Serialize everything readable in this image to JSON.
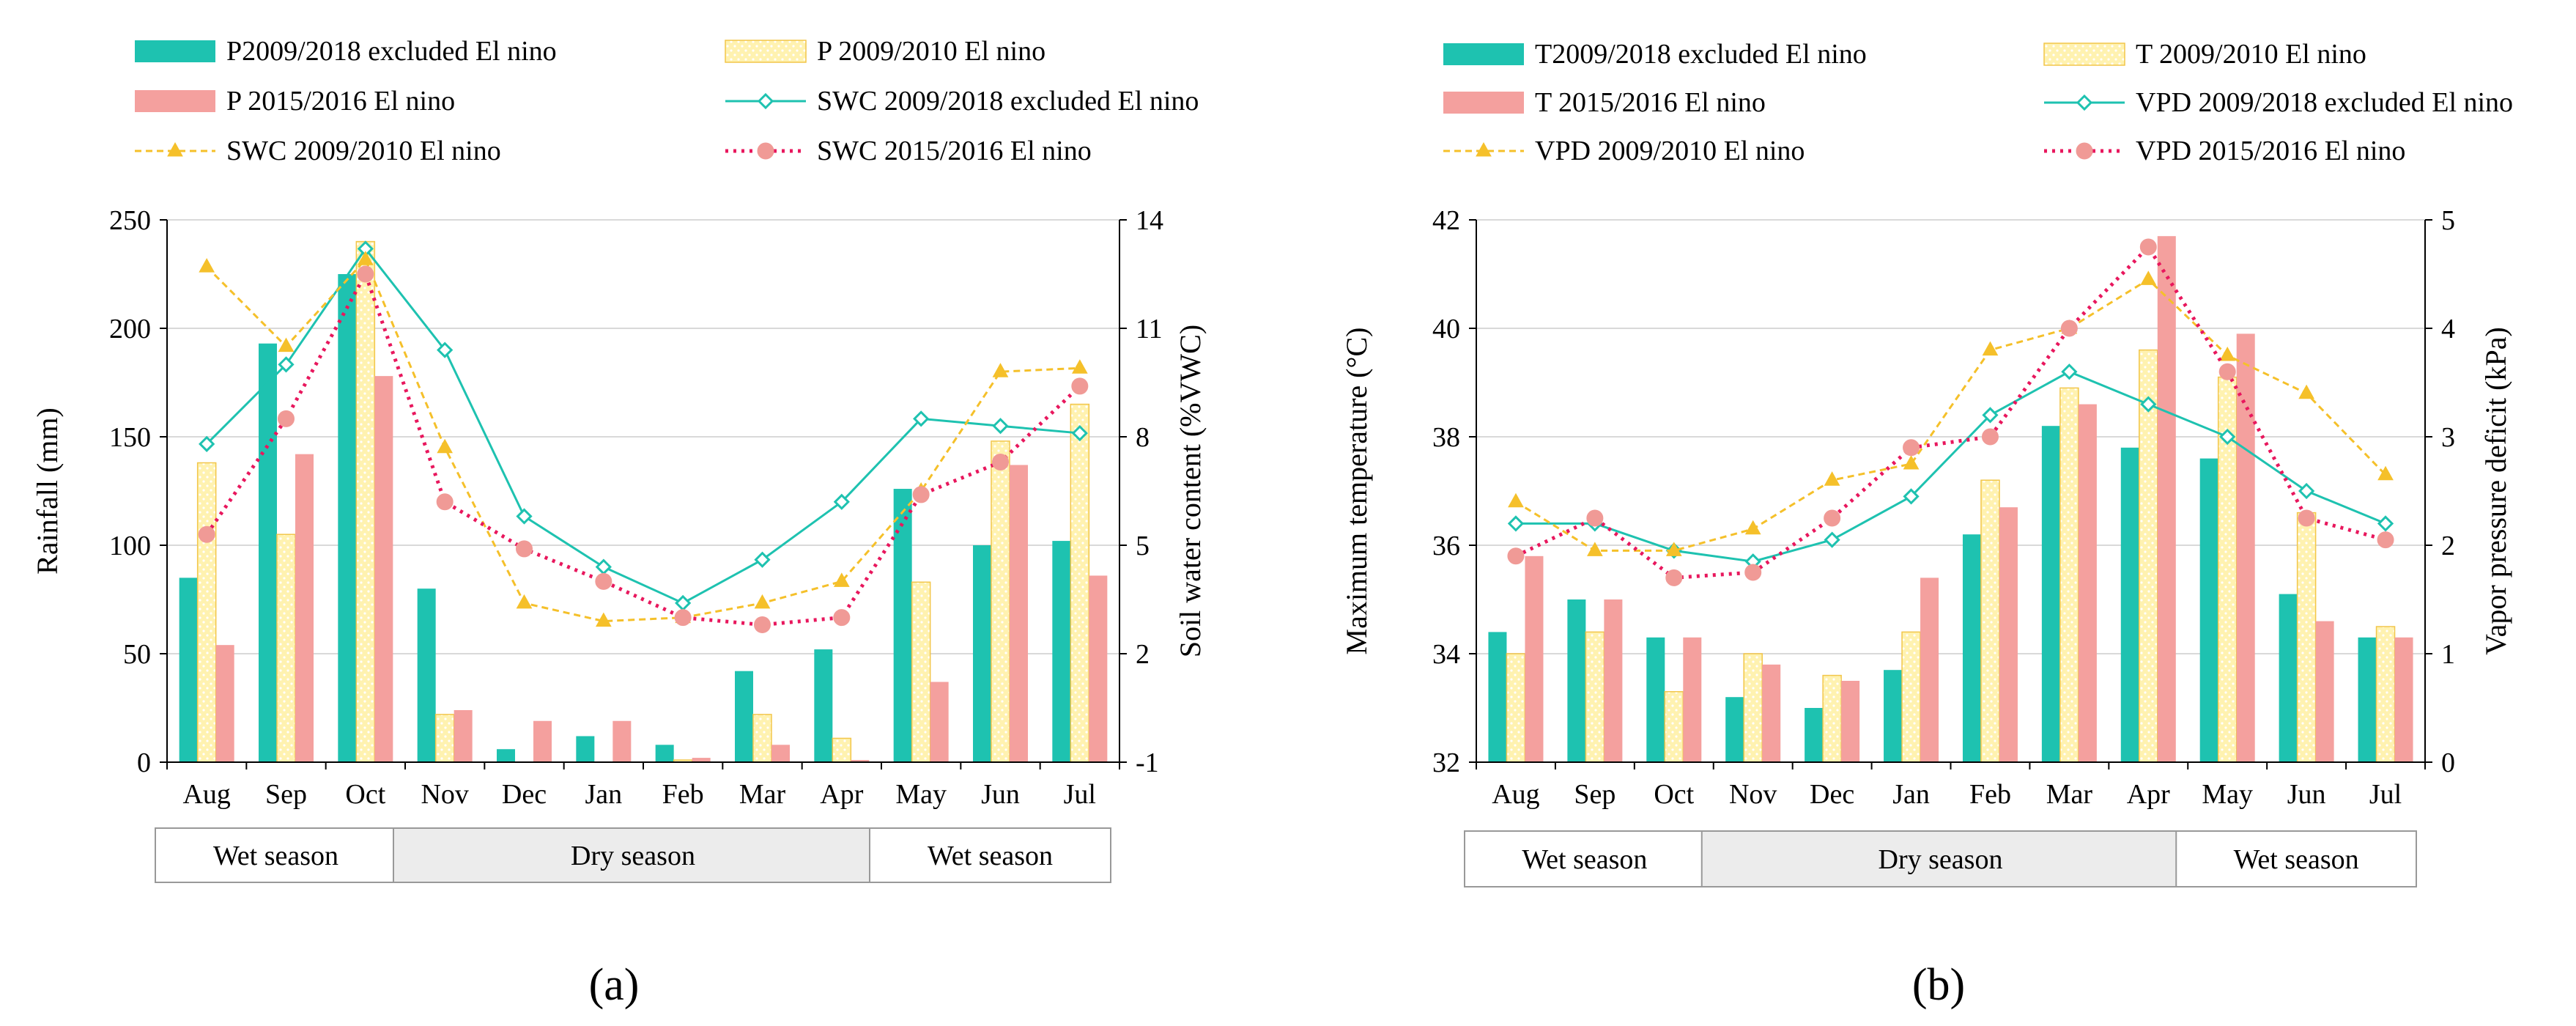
{
  "colors": {
    "teal": "#1ec2b0",
    "pink": "#f4a09e",
    "yellow_fill": "#fff2b0",
    "yellow_stroke": "#f2c64a",
    "yellow_line": "#f5c02a",
    "red_line": "#e8175d",
    "salmon_marker": "#f09a96",
    "season_fill_dry": "#ececec",
    "season_fill_wet": "#ffffff",
    "grid": "#d9d9d9"
  },
  "chart_data": [
    {
      "id": "a",
      "panel_label": "(a)",
      "type": "bar+line",
      "categories": [
        "Aug",
        "Sep",
        "Oct",
        "Nov",
        "Dec",
        "Jan",
        "Feb",
        "Mar",
        "Apr",
        "May",
        "Jun",
        "Jul"
      ],
      "ylabel_left": "Rainfall  (mm)",
      "ylabel_right": "Soil water content  (%VWC)",
      "ylim_left": [
        0,
        250
      ],
      "yticks_left": [
        0,
        50,
        100,
        150,
        200,
        250
      ],
      "ylim_right": [
        -1,
        14
      ],
      "yticks_right": [
        -1,
        2,
        5,
        8,
        11,
        14
      ],
      "legend": [
        {
          "name": "P2009/2018 excluded El nino",
          "kind": "bar",
          "style": "teal"
        },
        {
          "name": "P 2009/2010 El nino",
          "kind": "bar",
          "style": "yellow"
        },
        {
          "name": "P 2015/2016 El nino",
          "kind": "bar",
          "style": "pink"
        },
        {
          "name": "SWC 2009/2018 excluded El nino",
          "kind": "line",
          "style": "teal-diamond"
        },
        {
          "name": "SWC 2009/2010 El nino",
          "kind": "line",
          "style": "yellow-triangle"
        },
        {
          "name": "SWC 2015/2016 El nino",
          "kind": "line",
          "style": "red-circle"
        }
      ],
      "bars": [
        {
          "name": "P2009/2018 excluded El nino",
          "style": "teal",
          "values": [
            85,
            193,
            225,
            80,
            6,
            12,
            8,
            42,
            52,
            126,
            100,
            102
          ]
        },
        {
          "name": "P 2009/2010 El nino",
          "style": "yellow",
          "values": [
            138,
            105,
            240,
            22,
            0,
            0,
            1,
            22,
            11,
            83,
            148,
            165
          ]
        },
        {
          "name": "P 2015/2016 El nino",
          "style": "pink",
          "values": [
            54,
            142,
            178,
            24,
            19,
            19,
            2,
            8,
            1,
            37,
            137,
            86
          ]
        }
      ],
      "lines": [
        {
          "name": "SWC 2009/2018 excluded El nino",
          "style": "teal-diamond",
          "values": [
            7.8,
            10.0,
            13.2,
            10.4,
            5.8,
            4.4,
            3.4,
            4.6,
            6.2,
            8.5,
            8.3,
            8.1
          ]
        },
        {
          "name": "SWC 2009/2010 El nino",
          "style": "yellow-triangle",
          "values": [
            12.7,
            10.5,
            12.9,
            7.7,
            3.4,
            2.9,
            3.0,
            3.4,
            4.0,
            6.5,
            9.8,
            9.9
          ]
        },
        {
          "name": "SWC 2015/2016 El nino",
          "style": "red-circle",
          "values": [
            5.3,
            8.5,
            12.5,
            6.2,
            4.9,
            4.0,
            3.0,
            2.8,
            3.0,
            6.4,
            7.3,
            9.4
          ]
        }
      ],
      "seasons": [
        {
          "label": "Wet season",
          "start": 0,
          "end": 2,
          "fill": "wet"
        },
        {
          "label": "Dry season",
          "start": 3,
          "end": 8,
          "fill": "dry"
        },
        {
          "label": "Wet season",
          "start": 9,
          "end": 11,
          "fill": "wet"
        }
      ]
    },
    {
      "id": "b",
      "panel_label": "(b)",
      "type": "bar+line",
      "categories": [
        "Aug",
        "Sep",
        "Oct",
        "Nov",
        "Dec",
        "Jan",
        "Feb",
        "Mar",
        "Apr",
        "May",
        "Jun",
        "Jul"
      ],
      "ylabel_left": "Maximum  temperature  (°C)",
      "ylabel_right": "Vapor pressure  deficit  (kPa)",
      "ylim_left": [
        32,
        42
      ],
      "yticks_left": [
        32,
        34,
        36,
        38,
        40,
        42
      ],
      "ylim_right": [
        0,
        5
      ],
      "yticks_right": [
        0,
        1,
        2,
        3,
        4,
        5
      ],
      "legend": [
        {
          "name": "T2009/2018 excluded El nino",
          "kind": "bar",
          "style": "teal"
        },
        {
          "name": "T 2009/2010 El nino",
          "kind": "bar",
          "style": "yellow"
        },
        {
          "name": "T 2015/2016 El nino",
          "kind": "bar",
          "style": "pink"
        },
        {
          "name": "VPD 2009/2018 excluded El nino",
          "kind": "line",
          "style": "teal-diamond"
        },
        {
          "name": "VPD 2009/2010 El nino",
          "kind": "line",
          "style": "yellow-triangle"
        },
        {
          "name": "VPD 2015/2016 El nino",
          "kind": "line",
          "style": "red-circle"
        }
      ],
      "bars": [
        {
          "name": "T2009/2018 excluded El nino",
          "style": "teal",
          "values": [
            34.4,
            35.0,
            34.3,
            33.2,
            33.0,
            33.7,
            36.2,
            38.2,
            37.8,
            37.6,
            35.1,
            34.3
          ]
        },
        {
          "name": "T 2009/2010 El nino",
          "style": "yellow",
          "values": [
            34.0,
            34.4,
            33.3,
            34.0,
            33.6,
            34.4,
            37.2,
            38.9,
            39.6,
            39.1,
            36.6,
            34.5
          ]
        },
        {
          "name": "T 2015/2016 El nino",
          "style": "pink",
          "values": [
            35.8,
            35.0,
            34.3,
            33.8,
            33.5,
            35.4,
            36.7,
            38.6,
            41.7,
            39.9,
            34.6,
            34.3
          ]
        }
      ],
      "lines": [
        {
          "name": "VPD 2009/2018 excluded El nino",
          "style": "teal-diamond",
          "values": [
            2.2,
            2.2,
            1.95,
            1.85,
            2.05,
            2.45,
            3.2,
            3.6,
            3.3,
            3.0,
            2.5,
            2.2
          ]
        },
        {
          "name": "VPD 2009/2010 El nino",
          "style": "yellow-triangle",
          "values": [
            2.4,
            1.95,
            1.95,
            2.15,
            2.6,
            2.75,
            3.8,
            4.0,
            4.45,
            3.75,
            3.4,
            2.65
          ]
        },
        {
          "name": "VPD 2015/2016 El nino",
          "style": "red-circle",
          "values": [
            1.9,
            2.25,
            1.7,
            1.75,
            2.25,
            2.9,
            3.0,
            4.0,
            4.75,
            3.6,
            2.25,
            2.05
          ]
        }
      ],
      "seasons": [
        {
          "label": "Wet season",
          "start": 0,
          "end": 2,
          "fill": "wet"
        },
        {
          "label": "Dry season",
          "start": 3,
          "end": 8,
          "fill": "dry"
        },
        {
          "label": "Wet season",
          "start": 9,
          "end": 11,
          "fill": "wet"
        }
      ]
    }
  ]
}
